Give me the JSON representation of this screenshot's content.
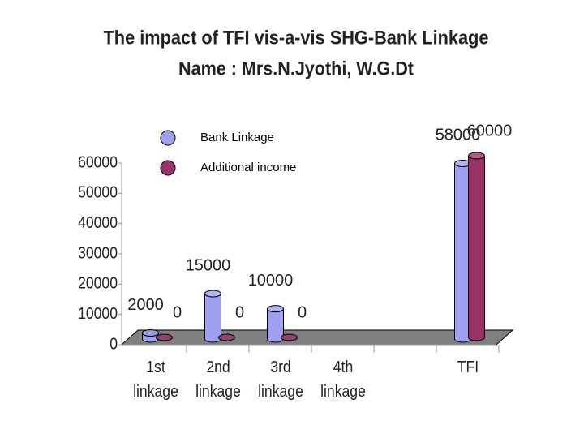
{
  "chart_data": {
    "type": "bar3d",
    "title": "The impact of TFI vis-a-vis SHG-Bank Linkage",
    "subtitle": "Name : Mrs.N.Jyothi, W.G.Dt",
    "categories": [
      "1st linkage",
      "2nd linkage",
      "3rd linkage",
      "4th linkage",
      null,
      "TFI"
    ],
    "series": [
      {
        "name": "Bank Linkage",
        "color": "#a0a0f0",
        "values": [
          2000,
          15000,
          10000,
          null,
          null,
          58000
        ]
      },
      {
        "name": "Additional income",
        "color": "#993366",
        "values": [
          0,
          0,
          0,
          null,
          null,
          60000
        ]
      }
    ],
    "ylim": [
      0,
      60000
    ],
    "yticks": [
      0,
      10000,
      20000,
      30000,
      40000,
      50000,
      60000
    ],
    "data_labels": true
  }
}
